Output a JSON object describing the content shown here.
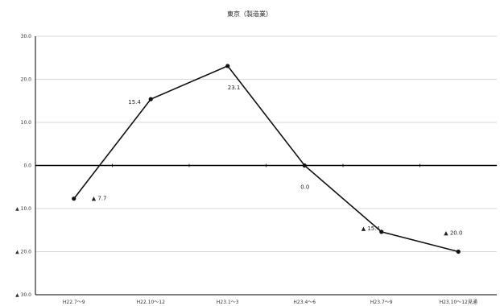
{
  "chart_data": {
    "type": "line",
    "title": "東京（製造業）",
    "categories": [
      "H22.7～9",
      "H22.10～12",
      "H23.1～3",
      "H23.4～6",
      "H23.7～9",
      "H23.10～12見通"
    ],
    "series": [
      {
        "values": [
          -7.7,
          15.4,
          23.1,
          0.0,
          -15.4,
          -20.0
        ]
      }
    ],
    "data_labels": [
      "▲ 7.7",
      "15.4",
      "23.1",
      "0.0",
      "▲ 15.4",
      "▲ 20.0"
    ],
    "y_tick_labels": [
      "30.0",
      "20.0",
      "10.0",
      "0.0",
      "▲ 10.0",
      "▲ 20.0",
      "▲ 30.0"
    ],
    "y_ticks": [
      30,
      20,
      10,
      0,
      -10,
      -20,
      -30
    ],
    "ylim": [
      -30,
      30
    ],
    "xlabel": "",
    "ylabel": "",
    "grid": true,
    "colors": {
      "line": "#111111",
      "grid": "#cccccc",
      "axis": "#000000"
    }
  }
}
